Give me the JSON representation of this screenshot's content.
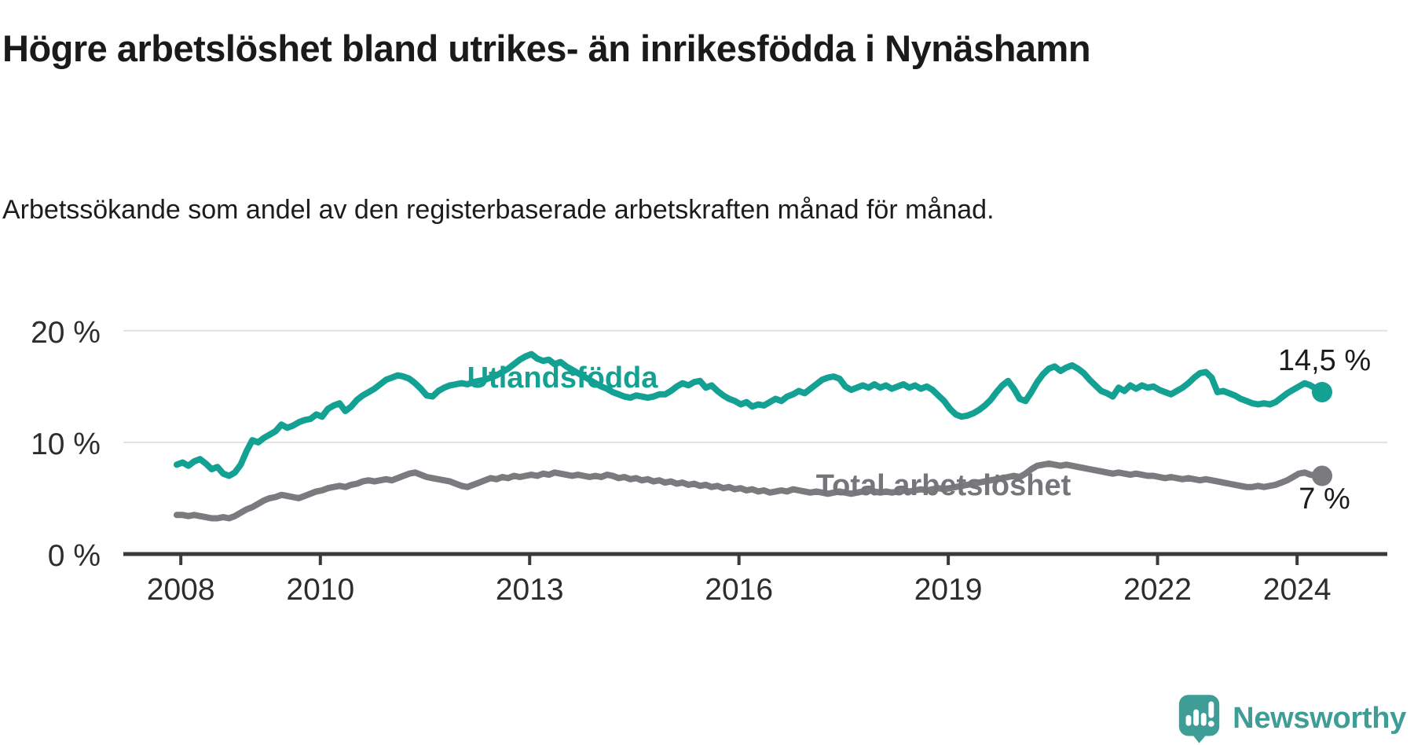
{
  "header": {
    "title": "Högre arbetslöshet bland utrikes- än inrikesfödda i Nynäshamn",
    "subtitle": "Arbetssökande som andel av den registerbaserade arbetskraften månad för månad."
  },
  "chart_data": {
    "type": "line",
    "unit": "%",
    "frequency": "monthly",
    "x_start": "2008-01",
    "x_end": "2024-06",
    "ylim": [
      0,
      21.5
    ],
    "grid": "horizontal",
    "legend_position": "inline-labels",
    "grid_color": "#e2e2e2",
    "axis_color": "#3a3a3a",
    "tick_label_color": "#2d2d2d",
    "value_label_color": "#1b1b1b",
    "y_ticks": [
      {
        "value": 0,
        "label": "0 %"
      },
      {
        "value": 10,
        "label": "10 %"
      },
      {
        "value": 20,
        "label": "20 %"
      }
    ],
    "x_ticks": [
      {
        "year": 2008,
        "label": "2008"
      },
      {
        "year": 2010,
        "label": "2010"
      },
      {
        "year": 2013,
        "label": "2013"
      },
      {
        "year": 2016,
        "label": "2016"
      },
      {
        "year": 2019,
        "label": "2019"
      },
      {
        "year": 2022,
        "label": "2022"
      },
      {
        "year": 2024,
        "label": "2024"
      }
    ],
    "series": [
      {
        "name": "Utlandsfödda",
        "color": "#12a192",
        "label_color": "#12a192",
        "end_label": "14,5 %",
        "end_value": 14.5,
        "values": [
          8.0,
          8.2,
          7.9,
          8.3,
          8.5,
          8.1,
          7.6,
          7.8,
          7.2,
          7.0,
          7.3,
          8.0,
          9.2,
          10.2,
          10.0,
          10.4,
          10.7,
          11.0,
          11.6,
          11.3,
          11.5,
          11.8,
          12.0,
          12.1,
          12.5,
          12.3,
          13.0,
          13.3,
          13.5,
          12.8,
          13.2,
          13.8,
          14.2,
          14.5,
          14.8,
          15.2,
          15.6,
          15.8,
          16.0,
          15.9,
          15.7,
          15.3,
          14.8,
          14.2,
          14.1,
          14.6,
          14.9,
          15.1,
          15.2,
          15.3,
          15.2,
          15.4,
          15.5,
          15.6,
          15.8,
          16.0,
          16.3,
          16.6,
          17.0,
          17.4,
          17.7,
          17.9,
          17.5,
          17.3,
          17.4,
          17.0,
          17.2,
          16.8,
          16.5,
          16.2,
          15.9,
          15.6,
          15.3,
          15.0,
          14.8,
          14.5,
          14.3,
          14.1,
          14.0,
          14.2,
          14.1,
          14.0,
          14.1,
          14.3,
          14.3,
          14.6,
          15.0,
          15.3,
          15.1,
          15.4,
          15.5,
          14.9,
          15.1,
          14.6,
          14.2,
          13.9,
          13.7,
          13.4,
          13.6,
          13.2,
          13.4,
          13.3,
          13.6,
          13.9,
          13.7,
          14.1,
          14.3,
          14.6,
          14.4,
          14.8,
          15.2,
          15.6,
          15.8,
          15.9,
          15.7,
          15.0,
          14.7,
          14.9,
          15.1,
          14.9,
          15.2,
          14.9,
          15.1,
          14.8,
          15.0,
          15.2,
          14.9,
          15.1,
          14.8,
          15.0,
          14.7,
          14.2,
          13.7,
          13.0,
          12.5,
          12.3,
          12.4,
          12.6,
          12.9,
          13.3,
          13.8,
          14.5,
          15.1,
          15.5,
          14.8,
          13.9,
          13.7,
          14.5,
          15.4,
          16.1,
          16.6,
          16.8,
          16.4,
          16.7,
          16.9,
          16.6,
          16.2,
          15.6,
          15.1,
          14.6,
          14.4,
          14.1,
          14.9,
          14.6,
          15.1,
          14.8,
          15.1,
          14.9,
          15.0,
          14.7,
          14.5,
          14.3,
          14.6,
          14.9,
          15.3,
          15.8,
          16.2,
          16.3,
          15.8,
          14.5,
          14.6,
          14.4,
          14.2,
          13.9,
          13.7,
          13.5,
          13.4,
          13.5,
          13.4,
          13.6,
          14.0,
          14.4,
          14.7,
          15.0,
          15.3,
          15.1,
          14.8,
          14.5
        ]
      },
      {
        "name": "Total arbetslöshet",
        "color": "#7b7b7f",
        "label_color": "#75757a",
        "end_label": "7 %",
        "end_value": 7.0,
        "values": [
          3.5,
          3.5,
          3.4,
          3.5,
          3.4,
          3.3,
          3.2,
          3.2,
          3.3,
          3.2,
          3.4,
          3.7,
          4.0,
          4.2,
          4.5,
          4.8,
          5.0,
          5.1,
          5.3,
          5.2,
          5.1,
          5.0,
          5.2,
          5.4,
          5.6,
          5.7,
          5.9,
          6.0,
          6.1,
          6.0,
          6.2,
          6.3,
          6.5,
          6.6,
          6.5,
          6.6,
          6.7,
          6.6,
          6.8,
          7.0,
          7.2,
          7.3,
          7.1,
          6.9,
          6.8,
          6.7,
          6.6,
          6.5,
          6.3,
          6.1,
          6.0,
          6.2,
          6.4,
          6.6,
          6.8,
          6.7,
          6.9,
          6.8,
          7.0,
          6.9,
          7.0,
          7.1,
          7.0,
          7.2,
          7.1,
          7.3,
          7.2,
          7.1,
          7.0,
          7.1,
          7.0,
          6.9,
          7.0,
          6.9,
          7.1,
          7.0,
          6.8,
          6.9,
          6.7,
          6.8,
          6.6,
          6.7,
          6.5,
          6.6,
          6.4,
          6.5,
          6.3,
          6.4,
          6.2,
          6.3,
          6.1,
          6.2,
          6.0,
          6.1,
          5.9,
          6.0,
          5.8,
          5.9,
          5.7,
          5.8,
          5.6,
          5.7,
          5.5,
          5.6,
          5.7,
          5.6,
          5.8,
          5.7,
          5.6,
          5.5,
          5.6,
          5.5,
          5.4,
          5.5,
          5.6,
          5.5,
          5.4,
          5.5,
          5.6,
          5.7,
          5.6,
          5.5,
          5.6,
          5.5,
          5.6,
          5.7,
          5.6,
          5.7,
          5.8,
          5.7,
          5.8,
          5.9,
          5.8,
          5.9,
          6.0,
          6.1,
          6.2,
          6.3,
          6.4,
          6.5,
          6.6,
          6.7,
          6.8,
          6.9,
          7.0,
          6.9,
          7.2,
          7.6,
          7.9,
          8.0,
          8.1,
          8.0,
          7.9,
          8.0,
          7.9,
          7.8,
          7.7,
          7.6,
          7.5,
          7.4,
          7.3,
          7.2,
          7.3,
          7.2,
          7.1,
          7.2,
          7.1,
          7.0,
          7.0,
          6.9,
          6.8,
          6.9,
          6.8,
          6.7,
          6.8,
          6.7,
          6.6,
          6.7,
          6.6,
          6.5,
          6.4,
          6.3,
          6.2,
          6.1,
          6.0,
          6.0,
          6.1,
          6.0,
          6.1,
          6.2,
          6.4,
          6.6,
          6.9,
          7.2,
          7.3,
          7.1,
          7.0,
          7.0
        ]
      }
    ]
  },
  "branding": {
    "logo_text": "Newsworthy",
    "logo_color": "#3e9d97"
  }
}
